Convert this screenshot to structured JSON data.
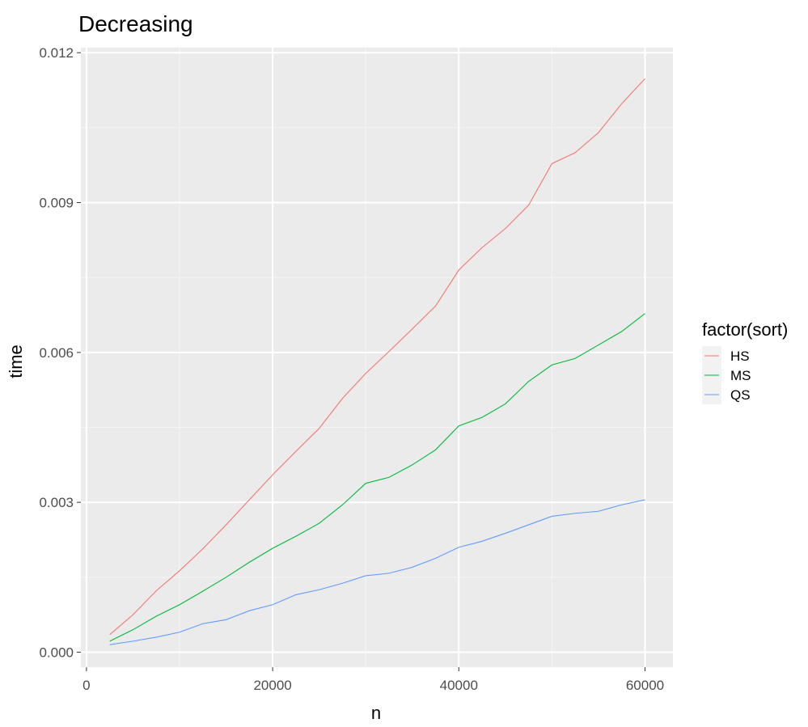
{
  "chart_data": {
    "type": "line",
    "title": "Decreasing",
    "xlabel": "n",
    "ylabel": "time",
    "xlim": [
      -600,
      63000
    ],
    "ylim": [
      -0.0003,
      0.0121
    ],
    "x_ticks": [
      0,
      20000,
      40000,
      60000
    ],
    "x_tick_labels": [
      "0",
      "20000",
      "40000",
      "60000"
    ],
    "y_ticks": [
      0.0,
      0.003,
      0.006,
      0.009,
      0.012
    ],
    "y_tick_labels": [
      "0.000",
      "0.003",
      "0.006",
      "0.009",
      "0.012"
    ],
    "grid": true,
    "legend": {
      "title": "factor(sort)",
      "placement": "right"
    },
    "x": [
      2500,
      5000,
      7500,
      10000,
      12500,
      15000,
      17500,
      20000,
      22500,
      25000,
      27500,
      30000,
      32500,
      35000,
      37500,
      40000,
      42500,
      45000,
      47500,
      50000,
      52500,
      55000,
      57500,
      60000
    ],
    "series": [
      {
        "name": "HS",
        "color": "#F8766D",
        "values": [
          0.00035,
          0.00075,
          0.00123,
          0.00163,
          0.00207,
          0.00255,
          0.00305,
          0.00355,
          0.00402,
          0.00448,
          0.00508,
          0.00558,
          0.00602,
          0.00647,
          0.00693,
          0.00765,
          0.0081,
          0.00848,
          0.00895,
          0.00978,
          0.01,
          0.0104,
          0.01098,
          0.01148
        ]
      },
      {
        "name": "MS",
        "color": "#00BA38",
        "values": [
          0.00022,
          0.00045,
          0.00072,
          0.00095,
          0.00122,
          0.0015,
          0.0018,
          0.00208,
          0.00232,
          0.00258,
          0.00295,
          0.00338,
          0.0035,
          0.00375,
          0.00405,
          0.00453,
          0.0047,
          0.00497,
          0.00542,
          0.00575,
          0.00588,
          0.00615,
          0.00642,
          0.00678
        ]
      },
      {
        "name": "QS",
        "color": "#619CFF",
        "values": [
          0.00015,
          0.00022,
          0.0003,
          0.0004,
          0.00057,
          0.00065,
          0.00083,
          0.00095,
          0.00115,
          0.00125,
          0.00138,
          0.00153,
          0.00158,
          0.0017,
          0.00188,
          0.0021,
          0.00222,
          0.00238,
          0.00255,
          0.00272,
          0.00278,
          0.00282,
          0.00295,
          0.00305
        ]
      }
    ]
  }
}
